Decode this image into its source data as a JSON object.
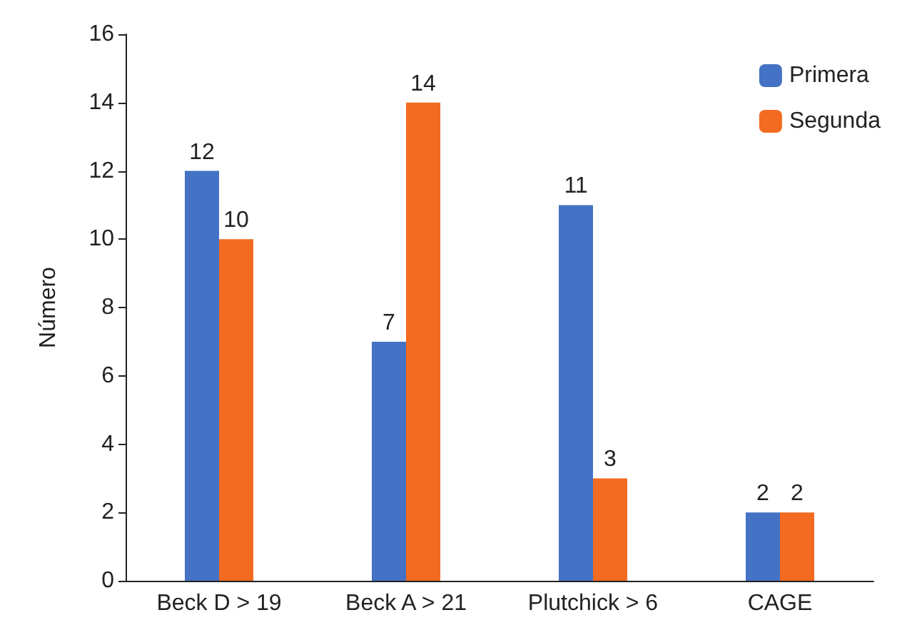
{
  "chart_data": {
    "type": "bar",
    "ylabel": "Número",
    "categories": [
      "Beck D > 19",
      "Beck A > 21",
      "Plutchick > 6",
      "CAGE"
    ],
    "series": [
      {
        "name": "Primera",
        "color": "#4472c4",
        "values": [
          12,
          7,
          11,
          2
        ]
      },
      {
        "name": "Segunda",
        "color": "#f26b21",
        "values": [
          10,
          14,
          3,
          2
        ]
      }
    ],
    "ylim": [
      0,
      16
    ],
    "yticks": [
      0,
      2,
      4,
      6,
      8,
      10,
      12,
      14,
      16
    ],
    "grid": false,
    "legend": "top right",
    "data_labels": true
  }
}
